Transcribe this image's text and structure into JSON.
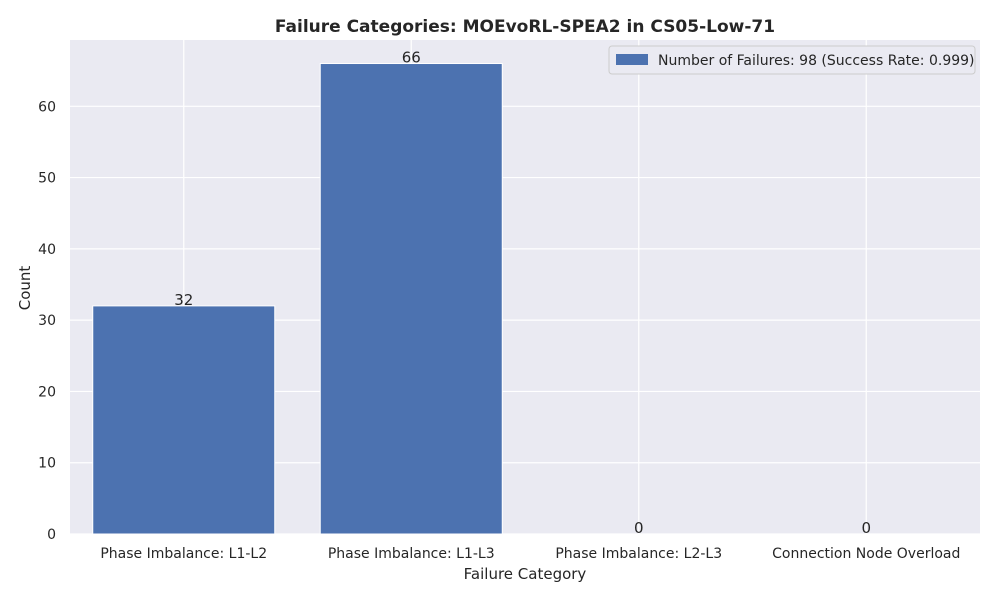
{
  "chart_data": {
    "type": "bar",
    "title": "Failure Categories: MOEvoRL-SPEA2 in CS05-Low-71",
    "xlabel": "Failure Category",
    "ylabel": "Count",
    "categories": [
      "Phase Imbalance: L1-L2",
      "Phase Imbalance: L1-L3",
      "Phase Imbalance: L2-L3",
      "Connection Node Overload"
    ],
    "series": [
      {
        "name": "Number of Failures: 98 (Success Rate: 0.999)",
        "values": [
          32,
          66,
          0,
          0
        ]
      }
    ],
    "data_labels": [
      "32",
      "66",
      "0",
      "0"
    ],
    "ylim": [
      0,
      69.3
    ],
    "yticks": [
      0,
      10,
      20,
      30,
      40,
      50,
      60
    ],
    "grid": true,
    "legend_position": "top-right",
    "colors": {
      "bar": "#4c72b0",
      "background": "#eaeaf2",
      "grid": "#ffffff",
      "text": "#262626"
    }
  }
}
